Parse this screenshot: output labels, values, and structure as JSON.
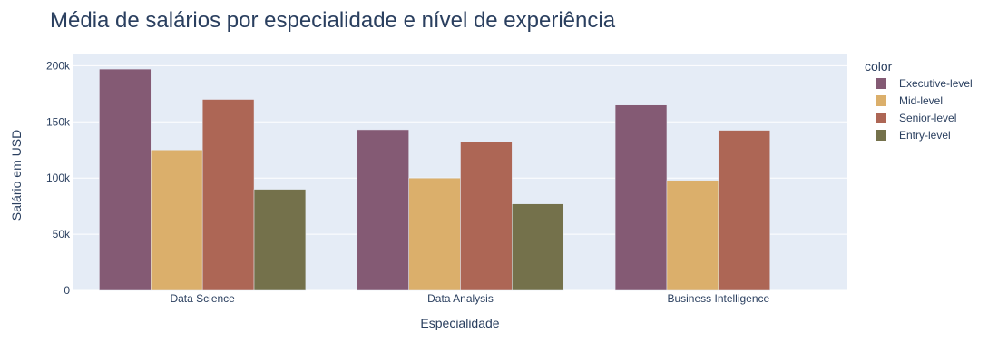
{
  "chart_data": {
    "type": "bar",
    "title": "Média de salários por especialidade e nível de experiência",
    "xlabel": "Especialidade",
    "ylabel": "Salário em USD",
    "ylim": [
      0,
      210000
    ],
    "yticks": [
      0,
      50000,
      100000,
      150000,
      200000
    ],
    "ytick_labels": [
      "0",
      "50k",
      "100k",
      "150k",
      "200k"
    ],
    "grid": true,
    "legend_title": "color",
    "legend_position": "top-right",
    "categories": [
      "Data Science",
      "Data Analysis",
      "Business Intelligence"
    ],
    "series": [
      {
        "name": "Executive-level",
        "color": "#845a74",
        "values": [
          197000,
          143000,
          165000
        ]
      },
      {
        "name": "Mid-level",
        "color": "#dbaf6b",
        "values": [
          125000,
          100000,
          98000
        ]
      },
      {
        "name": "Senior-level",
        "color": "#ad6655",
        "values": [
          170000,
          132000,
          142500
        ]
      },
      {
        "name": "Entry-level",
        "color": "#74714b",
        "values": [
          90000,
          77000,
          null
        ]
      }
    ],
    "plot_background": "#e5ecf6"
  }
}
